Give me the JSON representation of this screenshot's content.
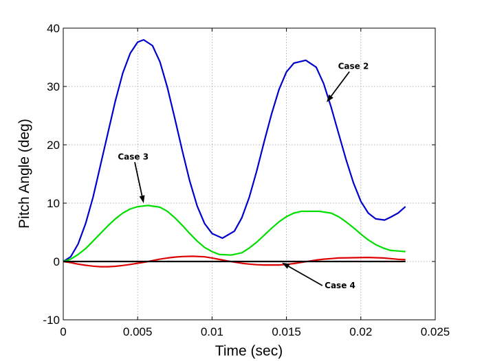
{
  "chart_data": {
    "type": "line",
    "xlabel": "Time (sec)",
    "ylabel": "Pitch Angle (deg)",
    "xlim": [
      0,
      0.025
    ],
    "ylim": [
      -10,
      40
    ],
    "xticks": [
      0,
      0.005,
      0.01,
      0.015,
      0.02,
      0.025
    ],
    "xtick_labels": [
      "0",
      "0.005",
      "0.01",
      "0.015",
      "0.02",
      "0.025"
    ],
    "yticks": [
      -10,
      0,
      10,
      20,
      30,
      40
    ],
    "ytick_labels": [
      "-10",
      "0",
      "10",
      "20",
      "30",
      "40"
    ],
    "grid": true,
    "series": [
      {
        "color": "#0000cc",
        "points": [
          [
            0,
            0
          ],
          [
            0.0005,
            0.8
          ],
          [
            0.001,
            3
          ],
          [
            0.0015,
            6.5
          ],
          [
            0.002,
            11
          ],
          [
            0.0025,
            16.5
          ],
          [
            0.003,
            22
          ],
          [
            0.0035,
            27.5
          ],
          [
            0.004,
            32.3
          ],
          [
            0.0045,
            35.7
          ],
          [
            0.005,
            37.6
          ],
          [
            0.0054,
            38
          ],
          [
            0.006,
            37
          ],
          [
            0.0065,
            34.2
          ],
          [
            0.007,
            29.8
          ],
          [
            0.0075,
            24.5
          ],
          [
            0.008,
            19
          ],
          [
            0.0085,
            13.8
          ],
          [
            0.009,
            9.5
          ],
          [
            0.0095,
            6.5
          ],
          [
            0.01,
            4.8
          ],
          [
            0.0107,
            4
          ],
          [
            0.0115,
            5.2
          ],
          [
            0.012,
            7.5
          ],
          [
            0.0125,
            11
          ],
          [
            0.013,
            15.5
          ],
          [
            0.0135,
            20.5
          ],
          [
            0.014,
            25.3
          ],
          [
            0.0145,
            29.5
          ],
          [
            0.015,
            32.5
          ],
          [
            0.0155,
            34
          ],
          [
            0.0163,
            34.5
          ],
          [
            0.017,
            33.3
          ],
          [
            0.0175,
            30.5
          ],
          [
            0.018,
            26.5
          ],
          [
            0.0185,
            22
          ],
          [
            0.019,
            17.5
          ],
          [
            0.0195,
            13.5
          ],
          [
            0.02,
            10.3
          ],
          [
            0.0205,
            8.3
          ],
          [
            0.021,
            7.3
          ],
          [
            0.0216,
            7.1
          ],
          [
            0.022,
            7.6
          ],
          [
            0.0225,
            8.3
          ],
          [
            0.023,
            9.4
          ]
        ]
      },
      {
        "color": "#00dd00",
        "points": [
          [
            0,
            0
          ],
          [
            0.0005,
            0.4
          ],
          [
            0.001,
            1.2
          ],
          [
            0.0015,
            2.2
          ],
          [
            0.002,
            3.5
          ],
          [
            0.0025,
            4.8
          ],
          [
            0.003,
            6.1
          ],
          [
            0.0035,
            7.3
          ],
          [
            0.004,
            8.3
          ],
          [
            0.0045,
            9
          ],
          [
            0.005,
            9.4
          ],
          [
            0.0057,
            9.6
          ],
          [
            0.0065,
            9.3
          ],
          [
            0.007,
            8.6
          ],
          [
            0.0075,
            7.5
          ],
          [
            0.008,
            6.2
          ],
          [
            0.0085,
            4.8
          ],
          [
            0.009,
            3.5
          ],
          [
            0.0095,
            2.4
          ],
          [
            0.01,
            1.7
          ],
          [
            0.0105,
            1.2
          ],
          [
            0.0113,
            1.1
          ],
          [
            0.012,
            1.5
          ],
          [
            0.0125,
            2.3
          ],
          [
            0.013,
            3.3
          ],
          [
            0.0135,
            4.5
          ],
          [
            0.014,
            5.7
          ],
          [
            0.0145,
            6.8
          ],
          [
            0.015,
            7.7
          ],
          [
            0.0155,
            8.3
          ],
          [
            0.016,
            8.6
          ],
          [
            0.0172,
            8.6
          ],
          [
            0.018,
            8.3
          ],
          [
            0.0185,
            7.7
          ],
          [
            0.019,
            6.8
          ],
          [
            0.0195,
            5.8
          ],
          [
            0.02,
            4.7
          ],
          [
            0.0205,
            3.7
          ],
          [
            0.021,
            2.9
          ],
          [
            0.0215,
            2.3
          ],
          [
            0.022,
            1.9
          ],
          [
            0.0225,
            1.8
          ],
          [
            0.023,
            1.7
          ]
        ]
      },
      {
        "color": "#dd0000",
        "points": [
          [
            0,
            0
          ],
          [
            0.0005,
            -0.2
          ],
          [
            0.001,
            -0.45
          ],
          [
            0.0015,
            -0.65
          ],
          [
            0.002,
            -0.8
          ],
          [
            0.0025,
            -0.9
          ],
          [
            0.003,
            -0.9
          ],
          [
            0.0035,
            -0.82
          ],
          [
            0.004,
            -0.68
          ],
          [
            0.0045,
            -0.5
          ],
          [
            0.005,
            -0.3
          ],
          [
            0.0055,
            -0.1
          ],
          [
            0.006,
            0.15
          ],
          [
            0.0065,
            0.4
          ],
          [
            0.007,
            0.6
          ],
          [
            0.0075,
            0.75
          ],
          [
            0.008,
            0.85
          ],
          [
            0.0087,
            0.9
          ],
          [
            0.0095,
            0.8
          ],
          [
            0.01,
            0.6
          ],
          [
            0.0105,
            0.35
          ],
          [
            0.011,
            0.1
          ],
          [
            0.0115,
            -0.1
          ],
          [
            0.012,
            -0.3
          ],
          [
            0.0125,
            -0.45
          ],
          [
            0.013,
            -0.55
          ],
          [
            0.0135,
            -0.6
          ],
          [
            0.0145,
            -0.6
          ],
          [
            0.015,
            -0.5
          ],
          [
            0.0155,
            -0.35
          ],
          [
            0.016,
            -0.15
          ],
          [
            0.0165,
            0.05
          ],
          [
            0.017,
            0.25
          ],
          [
            0.0175,
            0.4
          ],
          [
            0.018,
            0.5
          ],
          [
            0.0185,
            0.6
          ],
          [
            0.0195,
            0.65
          ],
          [
            0.0205,
            0.7
          ],
          [
            0.0215,
            0.6
          ],
          [
            0.022,
            0.5
          ],
          [
            0.0225,
            0.38
          ],
          [
            0.023,
            0.3
          ]
        ]
      },
      {
        "color": "#000000",
        "points": [
          [
            0,
            0
          ],
          [
            0.023,
            0
          ]
        ]
      }
    ],
    "annotations": [
      {
        "text": "Case 2",
        "x": 0.0195,
        "y": 33,
        "arrow_to": [
          0.0177,
          27.3
        ]
      },
      {
        "text": "Case 3",
        "x": 0.0047,
        "y": 17.5,
        "arrow_to": [
          0.0054,
          10
        ]
      },
      {
        "text": "Case 4",
        "x": 0.0186,
        "y": -4.6,
        "arrow_to": [
          0.0147,
          -0.2
        ]
      }
    ]
  }
}
